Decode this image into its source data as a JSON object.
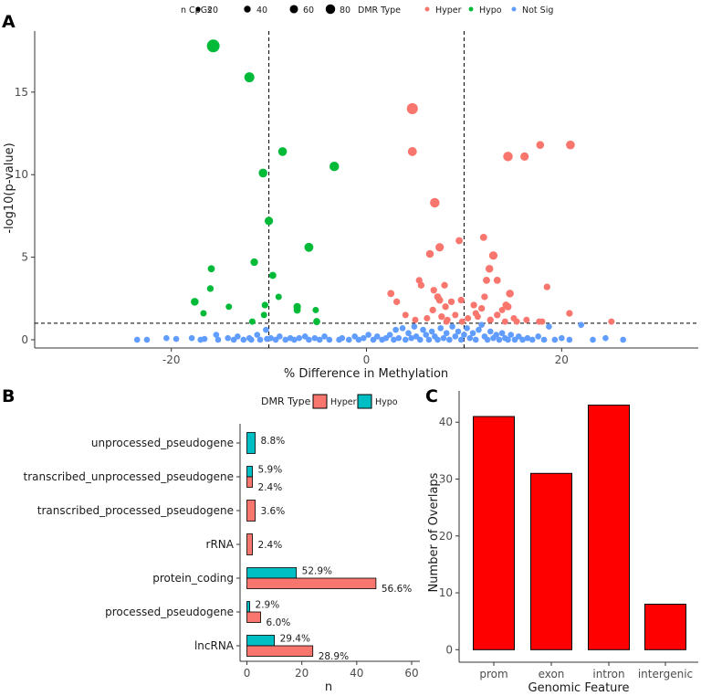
{
  "colors": {
    "hyper": "#F8766D",
    "hypo": "#00BA38",
    "notsig": "#619CFF",
    "hypo_bar": "#00BFC4",
    "feature_bar": "#FF0000"
  },
  "chart_data": [
    {
      "panel": "A",
      "type": "scatter",
      "xlabel": "% Difference in Methylation",
      "ylabel": "-log10(p-value)",
      "xlim": [
        -34,
        34
      ],
      "ylim": [
        -0.5,
        18.7
      ],
      "xticks": [
        -20,
        0,
        20
      ],
      "yticks": [
        0,
        5,
        10,
        15
      ],
      "vlines": [
        -10,
        10
      ],
      "hline": 1,
      "size_legend": {
        "title": "n CpGs",
        "values": [
          20,
          40,
          60,
          80
        ]
      },
      "color_legend": {
        "title": "DMR Type",
        "labels": [
          "Hyper",
          "Hypo",
          "Not Sig"
        ]
      },
      "hyper": [
        [
          4.7,
          14.0,
          60
        ],
        [
          4.7,
          11.4,
          40
        ],
        [
          7.0,
          8.3,
          45
        ],
        [
          14.5,
          11.1,
          45
        ],
        [
          16.2,
          11.1,
          35
        ],
        [
          17.8,
          11.8,
          30
        ],
        [
          20.9,
          11.8,
          38
        ],
        [
          7.5,
          5.6,
          35
        ],
        [
          6.5,
          5.2,
          30
        ],
        [
          9.5,
          6.0,
          25
        ],
        [
          12.0,
          6.2,
          25
        ],
        [
          13.0,
          5.1,
          35
        ],
        [
          12.6,
          4.3,
          30
        ],
        [
          12.3,
          3.6,
          25
        ],
        [
          13.4,
          3.6,
          25
        ],
        [
          14.3,
          2.1,
          25
        ],
        [
          14.7,
          2.8,
          30
        ],
        [
          14.5,
          2.0,
          25
        ],
        [
          18.5,
          3.2,
          22
        ],
        [
          2.5,
          2.8,
          25
        ],
        [
          3.1,
          2.3,
          22
        ],
        [
          5.4,
          3.6,
          22
        ],
        [
          5.6,
          3.3,
          22
        ],
        [
          7.3,
          2.6,
          25
        ],
        [
          7.5,
          2.4,
          25
        ],
        [
          8.1,
          2.0,
          22
        ],
        [
          8.7,
          2.3,
          22
        ],
        [
          9.7,
          2.4,
          22
        ],
        [
          8.0,
          3.3,
          22
        ],
        [
          6.9,
          3.0,
          22
        ],
        [
          11.0,
          2.1,
          22
        ],
        [
          12.1,
          2.6,
          22
        ],
        [
          4.0,
          1.5,
          20
        ],
        [
          5.0,
          1.2,
          20
        ],
        [
          6.2,
          1.3,
          20
        ],
        [
          6.8,
          1.8,
          22
        ],
        [
          7.7,
          1.4,
          22
        ],
        [
          8.3,
          1.2,
          20
        ],
        [
          9.1,
          1.5,
          20
        ],
        [
          9.8,
          1.1,
          20
        ],
        [
          10.4,
          1.3,
          20
        ],
        [
          11.4,
          1.4,
          20
        ],
        [
          11.8,
          1.9,
          22
        ],
        [
          12.7,
          1.2,
          22
        ],
        [
          13.4,
          1.5,
          22
        ],
        [
          14.2,
          1.1,
          20
        ],
        [
          15.1,
          1.3,
          20
        ],
        [
          15.4,
          1.1,
          20
        ],
        [
          16.4,
          1.2,
          20
        ],
        [
          17.7,
          1.1,
          20
        ],
        [
          18.0,
          1.1,
          20
        ],
        [
          20.8,
          1.6,
          22
        ],
        [
          25.1,
          1.1,
          20
        ],
        [
          13.9,
          1.8,
          20
        ],
        [
          11.2,
          1.6,
          20
        ],
        [
          8.2,
          1.1,
          20
        ]
      ],
      "hypo": [
        [
          -15.7,
          17.8,
          80
        ],
        [
          -12.0,
          15.9,
          50
        ],
        [
          -8.6,
          11.4,
          38
        ],
        [
          -10.6,
          10.1,
          38
        ],
        [
          -3.3,
          10.5,
          45
        ],
        [
          -10.0,
          7.2,
          35
        ],
        [
          -5.9,
          5.6,
          40
        ],
        [
          -11.5,
          4.7,
          28
        ],
        [
          -15.9,
          4.3,
          25
        ],
        [
          -9.6,
          3.9,
          25
        ],
        [
          -16.0,
          3.1,
          22
        ],
        [
          -17.6,
          2.3,
          30
        ],
        [
          -14.1,
          2.0,
          20
        ],
        [
          -10.4,
          2.1,
          22
        ],
        [
          -9.0,
          2.6,
          20
        ],
        [
          -7.1,
          2.0,
          28
        ],
        [
          -7.1,
          1.8,
          25
        ],
        [
          -5.2,
          1.8,
          20
        ],
        [
          -16.7,
          1.6,
          20
        ],
        [
          -10.5,
          1.5,
          20
        ],
        [
          -11.7,
          1.1,
          20
        ],
        [
          -5.1,
          1.1,
          25
        ]
      ],
      "notsig": [
        [
          -23.5,
          0.0,
          18
        ],
        [
          -22.5,
          0.0,
          18
        ],
        [
          -20.5,
          0.1,
          18
        ],
        [
          -19.5,
          0.05,
          18
        ],
        [
          -17.9,
          0.1,
          18
        ],
        [
          -17.0,
          0.0,
          18
        ],
        [
          -16.6,
          0.05,
          18
        ],
        [
          -15.4,
          0.3,
          18
        ],
        [
          -15.2,
          0.0,
          18
        ],
        [
          -14.2,
          0.1,
          18
        ],
        [
          -13.6,
          0.0,
          18
        ],
        [
          -13.2,
          0.2,
          18
        ],
        [
          -12.6,
          0.0,
          18
        ],
        [
          -12.0,
          0.1,
          18
        ],
        [
          -11.8,
          0.0,
          18
        ],
        [
          -11.2,
          0.3,
          18
        ],
        [
          -10.9,
          0.0,
          18
        ],
        [
          -10.3,
          0.6,
          18
        ],
        [
          -10.2,
          0.05,
          18
        ],
        [
          -9.8,
          0.1,
          18
        ],
        [
          -9.3,
          0.0,
          18
        ],
        [
          -8.9,
          0.2,
          18
        ],
        [
          -8.3,
          0.0,
          18
        ],
        [
          -7.8,
          0.1,
          18
        ],
        [
          -7.4,
          0.0,
          18
        ],
        [
          -6.9,
          0.1,
          18
        ],
        [
          -6.3,
          0.2,
          18
        ],
        [
          -5.9,
          0.0,
          18
        ],
        [
          -5.3,
          0.1,
          18
        ],
        [
          -4.8,
          0.0,
          18
        ],
        [
          -4.3,
          0.2,
          18
        ],
        [
          -3.8,
          0.0,
          18
        ],
        [
          -2.8,
          0.0,
          18
        ],
        [
          -2.5,
          0.1,
          18
        ],
        [
          -1.8,
          0.0,
          18
        ],
        [
          -1.2,
          0.2,
          18
        ],
        [
          -0.8,
          0.0,
          18
        ],
        [
          -0.3,
          0.1,
          18
        ],
        [
          0.2,
          0.3,
          18
        ],
        [
          0.7,
          0.0,
          18
        ],
        [
          1.1,
          0.2,
          18
        ],
        [
          1.6,
          0.0,
          18
        ],
        [
          2.0,
          0.1,
          18
        ],
        [
          2.4,
          0.3,
          18
        ],
        [
          2.8,
          0.0,
          18
        ],
        [
          3.0,
          0.6,
          18
        ],
        [
          3.3,
          0.1,
          18
        ],
        [
          3.7,
          0.7,
          18
        ],
        [
          4.0,
          0.0,
          18
        ],
        [
          4.3,
          0.4,
          18
        ],
        [
          4.6,
          0.1,
          18
        ],
        [
          4.9,
          0.8,
          18
        ],
        [
          5.1,
          0.2,
          18
        ],
        [
          5.5,
          0.0,
          18
        ],
        [
          5.8,
          0.6,
          18
        ],
        [
          6.1,
          0.3,
          18
        ],
        [
          6.4,
          0.0,
          18
        ],
        [
          6.7,
          0.5,
          18
        ],
        [
          7.0,
          0.2,
          18
        ],
        [
          7.3,
          0.0,
          18
        ],
        [
          7.6,
          0.7,
          18
        ],
        [
          7.9,
          0.1,
          18
        ],
        [
          8.2,
          0.4,
          18
        ],
        [
          8.5,
          0.0,
          18
        ],
        [
          8.8,
          0.8,
          18
        ],
        [
          9.1,
          0.2,
          18
        ],
        [
          9.4,
          0.5,
          18
        ],
        [
          9.7,
          0.0,
          18
        ],
        [
          10.0,
          0.3,
          18
        ],
        [
          10.3,
          0.7,
          18
        ],
        [
          10.6,
          0.1,
          18
        ],
        [
          10.9,
          0.4,
          18
        ],
        [
          11.2,
          0.0,
          18
        ],
        [
          11.5,
          0.6,
          18
        ],
        [
          11.8,
          0.9,
          18
        ],
        [
          12.1,
          0.2,
          18
        ],
        [
          12.4,
          0.0,
          18
        ],
        [
          12.7,
          0.5,
          18
        ],
        [
          13.0,
          0.1,
          18
        ],
        [
          13.3,
          0.3,
          18
        ],
        [
          13.6,
          0.0,
          18
        ],
        [
          13.9,
          0.4,
          18
        ],
        [
          14.2,
          0.1,
          18
        ],
        [
          14.5,
          0.0,
          18
        ],
        [
          14.8,
          0.3,
          18
        ],
        [
          15.2,
          0.0,
          18
        ],
        [
          15.6,
          0.2,
          18
        ],
        [
          16.0,
          0.0,
          18
        ],
        [
          16.5,
          0.1,
          18
        ],
        [
          17.0,
          0.0,
          18
        ],
        [
          17.6,
          0.2,
          18
        ],
        [
          18.2,
          0.0,
          18
        ],
        [
          18.7,
          0.8,
          18
        ],
        [
          19.3,
          0.0,
          18
        ],
        [
          20.0,
          0.1,
          18
        ],
        [
          20.8,
          0.0,
          18
        ],
        [
          22.0,
          0.9,
          18
        ],
        [
          23.2,
          0.0,
          18
        ],
        [
          24.5,
          0.1,
          18
        ],
        [
          26.3,
          0.0,
          18
        ]
      ]
    },
    {
      "panel": "B",
      "type": "bar",
      "orientation": "horizontal",
      "xlabel": "n",
      "ylabel": "",
      "xlim": [
        -2.5,
        63
      ],
      "xticks": [
        0,
        20,
        40,
        60
      ],
      "legend": {
        "title": "DMR Type",
        "labels": [
          "Hyper",
          "Hypo"
        ]
      },
      "categories": [
        "unprocessed_pseudogene",
        "transcribed_unprocessed_pseudogene",
        "transcribed_processed_pseudogene",
        "rRNA",
        "protein_coding",
        "processed_pseudogene",
        "lncRNA"
      ],
      "series": [
        {
          "name": "Hypo",
          "values": [
            3,
            2,
            null,
            null,
            18,
            1,
            10
          ],
          "labels": [
            "8.8%",
            "5.9%",
            "",
            "",
            "52.9%",
            "2.9%",
            "29.4%"
          ]
        },
        {
          "name": "Hyper",
          "values": [
            null,
            2,
            3,
            2,
            47,
            5,
            24
          ],
          "labels": [
            "",
            "2.4%",
            "3.6%",
            "2.4%",
            "56.6%",
            "6.0%",
            "28.9%"
          ]
        }
      ]
    },
    {
      "panel": "C",
      "type": "bar",
      "xlabel": "Genomic Feature",
      "ylabel": "Number of Overlaps",
      "ylim": [
        -2.2,
        45.5
      ],
      "yticks": [
        0,
        10,
        20,
        30,
        40
      ],
      "categories": [
        "prom",
        "exon",
        "intron",
        "intergenic"
      ],
      "values": [
        41,
        31,
        43,
        8
      ]
    }
  ]
}
